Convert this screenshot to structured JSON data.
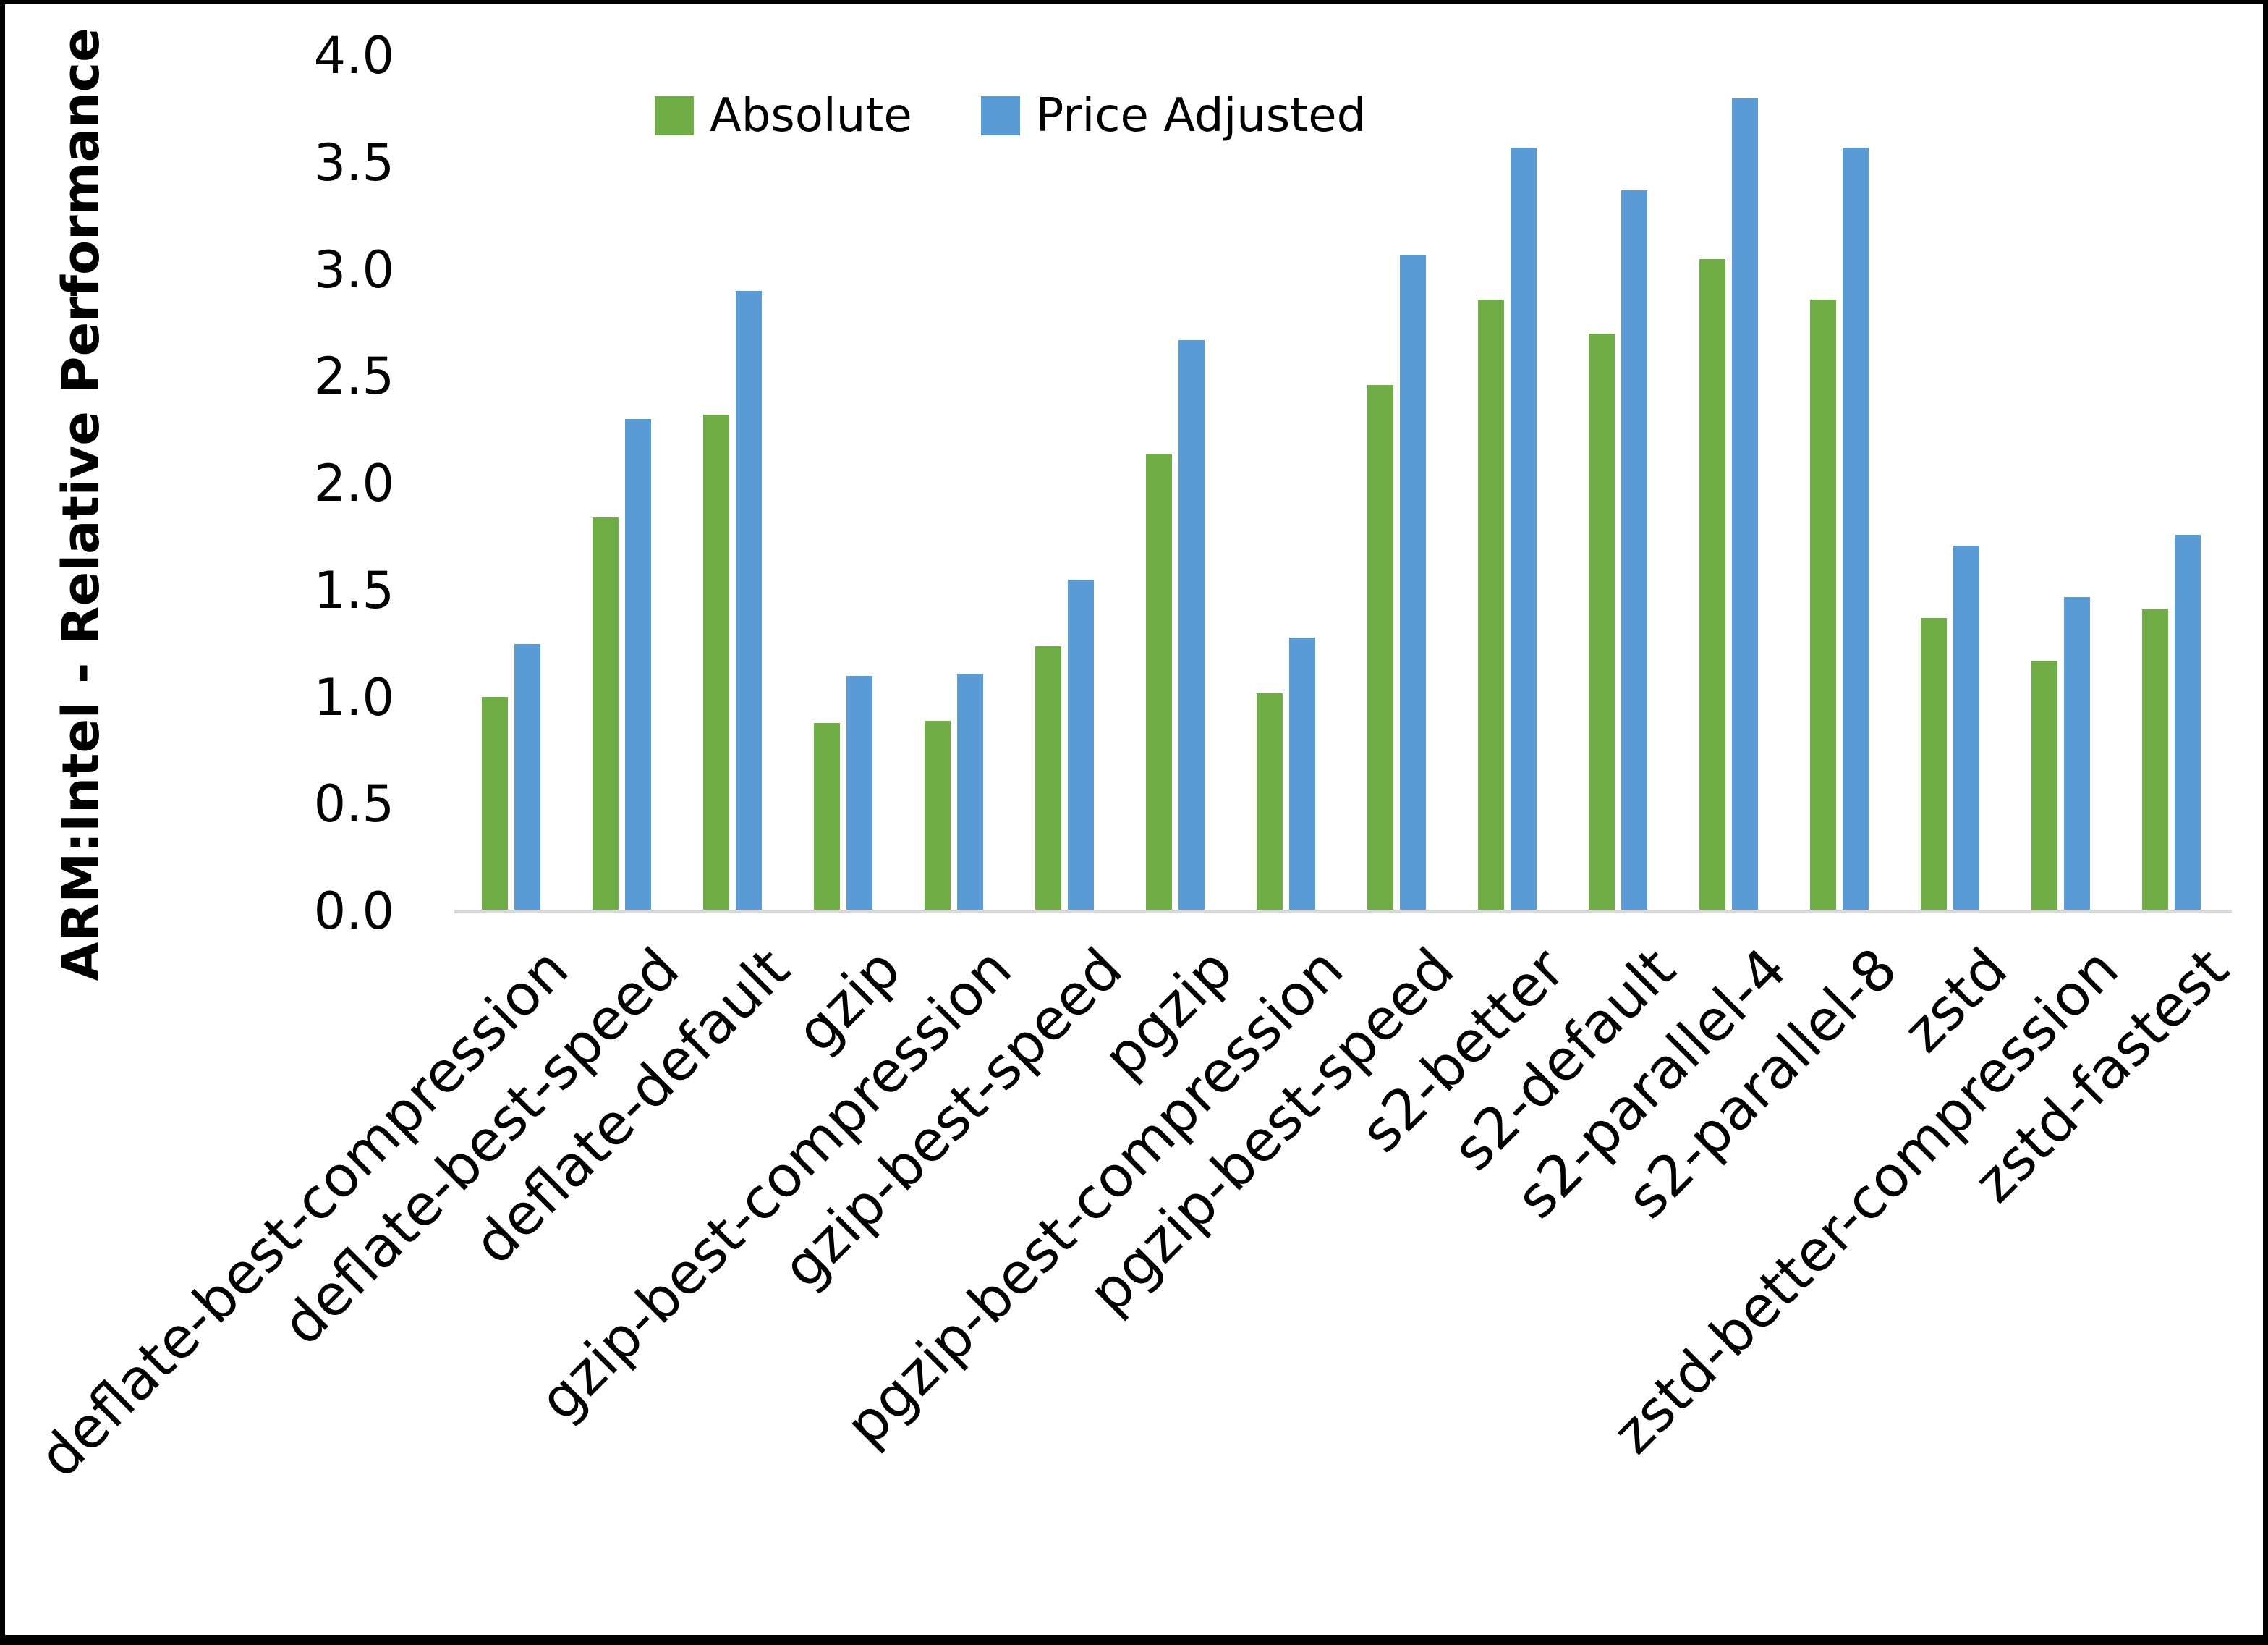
{
  "chart_data": {
    "type": "bar",
    "title": "",
    "ylabel": "ARM:Intel - Relative Performance",
    "xlabel": "",
    "ylim": [
      0.0,
      4.0
    ],
    "ytick_step": 0.5,
    "ytick_labels": [
      "4.0",
      "3.5",
      "3.0",
      "2.5",
      "2.0",
      "1.5",
      "1.0",
      "0.5",
      "0.0"
    ],
    "grid": false,
    "legend_position": "top-center-left",
    "categories": [
      "deflate-best-compression",
      "deflate-best-speed",
      "deflate-default",
      "gzip",
      "gzip-best-compression",
      "gzip-best-speed",
      "pgzip",
      "pgzip-best-compression",
      "pgzip-best-speed",
      "s2-better",
      "s2-default",
      "s2-parallel-4",
      "s2-parallel-8",
      "zstd",
      "zstd-better-compression",
      "zstd-fastest"
    ],
    "series": [
      {
        "name": "Absolute",
        "color": "#70AD47",
        "values": [
          1.0,
          1.84,
          2.32,
          0.88,
          0.89,
          1.24,
          2.14,
          1.02,
          2.46,
          2.86,
          2.7,
          3.05,
          2.86,
          1.37,
          1.17,
          1.41
        ]
      },
      {
        "name": "Price Adjusted",
        "color": "#5B9BD5",
        "values": [
          1.25,
          2.3,
          2.9,
          1.1,
          1.11,
          1.55,
          2.67,
          1.28,
          3.07,
          3.57,
          3.37,
          3.8,
          3.57,
          1.71,
          1.47,
          1.76
        ]
      }
    ]
  },
  "colors": {
    "background": "#FFFFFF",
    "border": "#000000",
    "axis_line": "#D9D9D9",
    "text": "#000000"
  }
}
